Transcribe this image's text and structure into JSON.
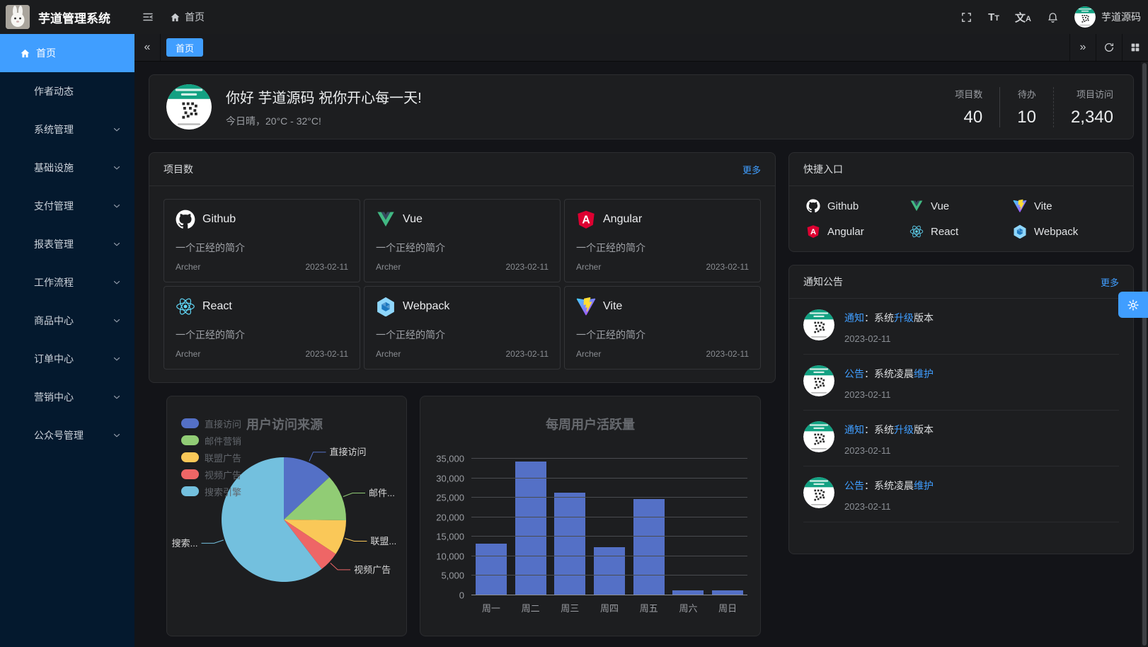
{
  "header": {
    "app_title": "芋道管理系统",
    "breadcrumb_home": "首页",
    "username": "芋道源码"
  },
  "sidebar": {
    "items": [
      {
        "id": "home",
        "label": "首页",
        "active": true,
        "icon": "home",
        "expandable": false
      },
      {
        "id": "author-news",
        "label": "作者动态",
        "active": false,
        "expandable": false
      },
      {
        "id": "system",
        "label": "系统管理",
        "active": false,
        "expandable": true
      },
      {
        "id": "infra",
        "label": "基础设施",
        "active": false,
        "expandable": true
      },
      {
        "id": "pay",
        "label": "支付管理",
        "active": false,
        "expandable": true
      },
      {
        "id": "report",
        "label": "报表管理",
        "active": false,
        "expandable": true
      },
      {
        "id": "workflow",
        "label": "工作流程",
        "active": false,
        "expandable": true
      },
      {
        "id": "product",
        "label": "商品中心",
        "active": false,
        "expandable": true
      },
      {
        "id": "order",
        "label": "订单中心",
        "active": false,
        "expandable": true
      },
      {
        "id": "marketing",
        "label": "营销中心",
        "active": false,
        "expandable": true
      },
      {
        "id": "mp",
        "label": "公众号管理",
        "active": false,
        "expandable": true
      }
    ]
  },
  "tabbar": {
    "tabs": [
      {
        "label": "首页",
        "active": true
      }
    ]
  },
  "welcome": {
    "greeting": "你好 芋道源码 祝你开心每一天!",
    "weather": "今日晴，20°C - 32°C!",
    "stats": [
      {
        "label": "项目数",
        "value": "40"
      },
      {
        "label": "待办",
        "value": "10"
      },
      {
        "label": "项目访问",
        "value": "2,340"
      }
    ]
  },
  "projects": {
    "title": "项目数",
    "more": "更多",
    "items": [
      {
        "name": "Github",
        "icon": "github",
        "desc": "一个正经的简介",
        "author": "Archer",
        "date": "2023-02-11"
      },
      {
        "name": "Vue",
        "icon": "vue",
        "desc": "一个正经的简介",
        "author": "Archer",
        "date": "2023-02-11"
      },
      {
        "name": "Angular",
        "icon": "angular",
        "desc": "一个正经的简介",
        "author": "Archer",
        "date": "2023-02-11"
      },
      {
        "name": "React",
        "icon": "react",
        "desc": "一个正经的简介",
        "author": "Archer",
        "date": "2023-02-11"
      },
      {
        "name": "Webpack",
        "icon": "webpack",
        "desc": "一个正经的简介",
        "author": "Archer",
        "date": "2023-02-11"
      },
      {
        "name": "Vite",
        "icon": "vite",
        "desc": "一个正经的简介",
        "author": "Archer",
        "date": "2023-02-11"
      }
    ]
  },
  "shortcuts": {
    "title": "快捷入口",
    "items": [
      {
        "name": "Github",
        "icon": "github"
      },
      {
        "name": "Vue",
        "icon": "vue"
      },
      {
        "name": "Vite",
        "icon": "vite"
      },
      {
        "name": "Angular",
        "icon": "angular"
      },
      {
        "name": "React",
        "icon": "react"
      },
      {
        "name": "Webpack",
        "icon": "webpack"
      }
    ]
  },
  "notices": {
    "title": "通知公告",
    "more": "更多",
    "items": [
      {
        "segments": [
          {
            "text": "通知",
            "hl": true
          },
          {
            "text": "：系统",
            "hl": false
          },
          {
            "text": "升级",
            "hl": true
          },
          {
            "text": "版本",
            "hl": false
          }
        ],
        "date": "2023-02-11"
      },
      {
        "segments": [
          {
            "text": "公告",
            "hl": true
          },
          {
            "text": "：系统凌晨",
            "hl": false
          },
          {
            "text": "维护",
            "hl": true
          }
        ],
        "date": "2023-02-11"
      },
      {
        "segments": [
          {
            "text": "通知",
            "hl": true
          },
          {
            "text": "：系统",
            "hl": false
          },
          {
            "text": "升级",
            "hl": true
          },
          {
            "text": "版本",
            "hl": false
          }
        ],
        "date": "2023-02-11"
      },
      {
        "segments": [
          {
            "text": "公告",
            "hl": true
          },
          {
            "text": "：系统凌晨",
            "hl": false
          },
          {
            "text": "维护",
            "hl": true
          }
        ],
        "date": "2023-02-11"
      }
    ]
  },
  "chart_data": [
    {
      "type": "pie",
      "title": "用户访问来源",
      "legend_position": "top-left",
      "legend": [
        "直接访问",
        "邮件营销",
        "联盟广告",
        "视频广告",
        "搜索引擎"
      ],
      "series": [
        {
          "name": "直接访问",
          "value": 335
        },
        {
          "name": "邮件营销",
          "value": 310
        },
        {
          "name": "联盟广告",
          "value": 234
        },
        {
          "name": "视频广告",
          "value": 135
        },
        {
          "name": "搜索引擎",
          "value": 1548
        }
      ],
      "labels_display": [
        "直接访问",
        "邮件...",
        "联盟...",
        "视频广告",
        "搜索..."
      ],
      "colors": [
        "#5470c6",
        "#91cc75",
        "#fac858",
        "#ee6666",
        "#73c0de"
      ]
    },
    {
      "type": "bar",
      "title": "每周用户活跃量",
      "categories": [
        "周一",
        "周二",
        "周三",
        "周四",
        "周五",
        "周六",
        "周日"
      ],
      "values": [
        13253,
        34235,
        26321,
        12340,
        24643,
        1322,
        1324
      ],
      "xlabel": "",
      "ylabel": "",
      "ylim": [
        0,
        35000
      ],
      "ytick_step": 5000,
      "bar_color": "#5470c6",
      "grid": true
    }
  ]
}
